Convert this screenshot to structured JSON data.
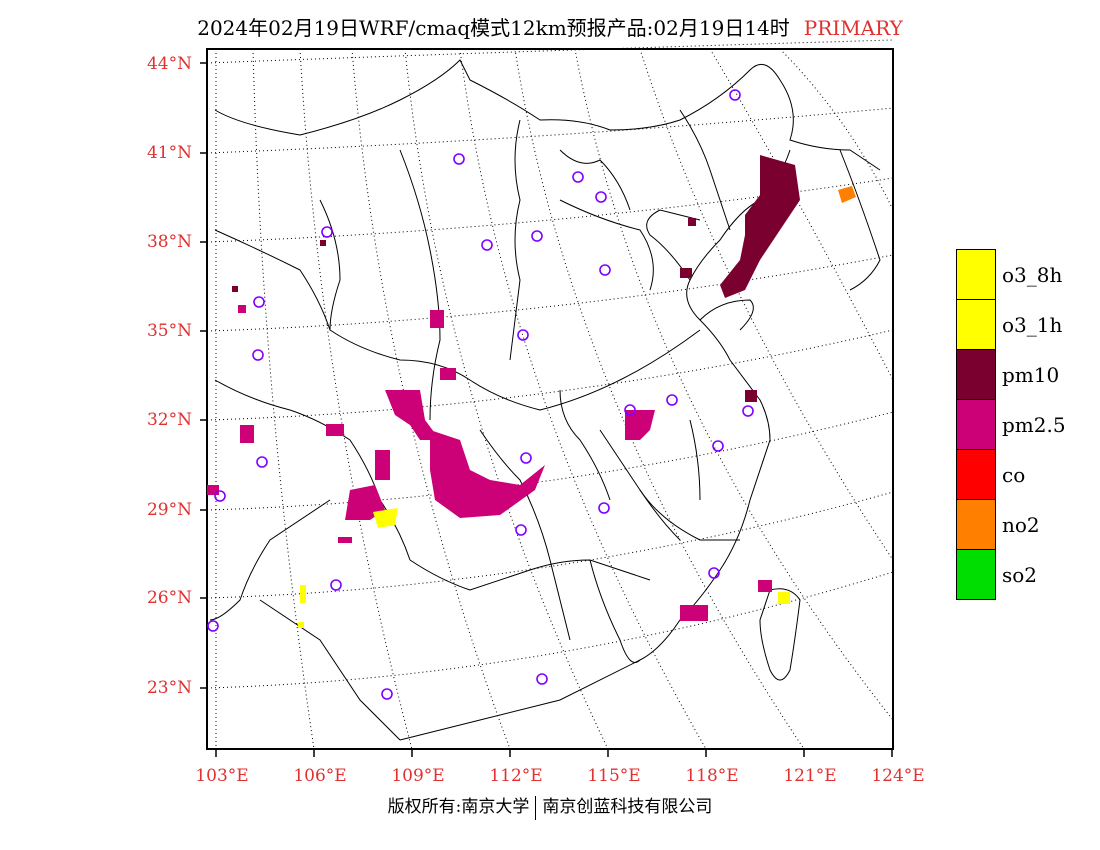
{
  "title": {
    "text": "2024年02月19日WRF/cmaq模式12km预报产品:02月19日14时",
    "flag": "PRIMARY",
    "flag_color": "#e03030"
  },
  "axes": {
    "lat_labels": [
      "44°N",
      "41°N",
      "38°N",
      "35°N",
      "32°N",
      "29°N",
      "26°N",
      "23°N"
    ],
    "lon_labels": [
      "103°E",
      "106°E",
      "109°E",
      "112°E",
      "115°E",
      "118°E",
      "121°E",
      "124°E"
    ],
    "label_color": "#e03030"
  },
  "legend": {
    "items": [
      {
        "label": "o3_8h",
        "color": "#ffff00"
      },
      {
        "label": "o3_1h",
        "color": "#ffff00"
      },
      {
        "label": "pm10",
        "color": "#7a0030"
      },
      {
        "label": "pm2.5",
        "color": "#cc0077"
      },
      {
        "label": "co",
        "color": "#ff0000"
      },
      {
        "label": "no2",
        "color": "#ff8000"
      },
      {
        "label": "so2",
        "color": "#00dd00"
      }
    ]
  },
  "footer": {
    "left": "版权所有:南京大学",
    "right": "南京创蓝科技有限公司"
  },
  "station_marker_icon": "circle-station-icon",
  "station_marker_color": "#8000ff"
}
